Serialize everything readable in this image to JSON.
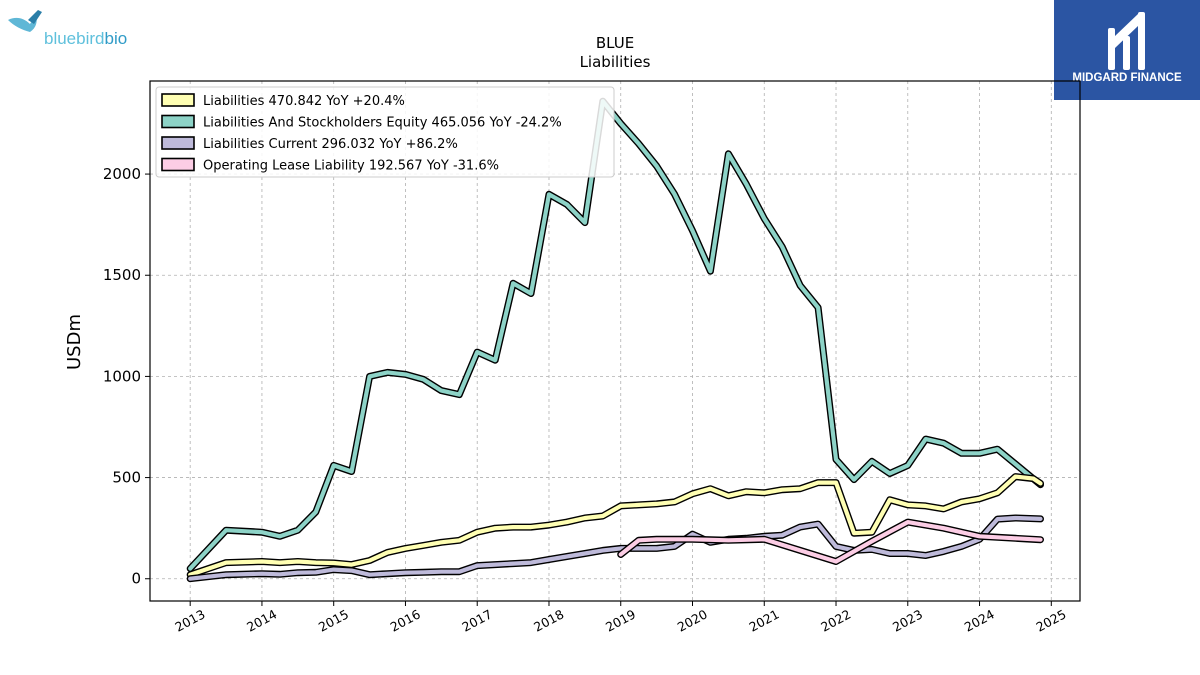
{
  "brand": {
    "company_logo_text": {
      "prefix": "bluebird",
      "suffix": "bio"
    },
    "publisher_logo_text": "MIDGARD FINANCE"
  },
  "chart_data": {
    "type": "line",
    "title": "BLUE",
    "subtitle": "Liabilities",
    "xlabel": "",
    "ylabel": "USDm",
    "xlim": [
      2012.44,
      2025.4
    ],
    "ylim": [
      -110,
      2460
    ],
    "x_ticks": [
      "2013",
      "2014",
      "2015",
      "2016",
      "2017",
      "2018",
      "2019",
      "2020",
      "2021",
      "2022",
      "2023",
      "2024",
      "2025"
    ],
    "y_ticks": [
      0,
      500,
      1000,
      1500,
      2000
    ],
    "grid": true,
    "legend_position": "top-left",
    "series": [
      {
        "name": "Liabilities  470.842 YoY +20.4%",
        "color": "#ffffb3",
        "points": [
          [
            2013.0,
            20
          ],
          [
            2013.5,
            80
          ],
          [
            2014.0,
            85
          ],
          [
            2014.25,
            80
          ],
          [
            2014.5,
            85
          ],
          [
            2014.75,
            80
          ],
          [
            2015.0,
            78
          ],
          [
            2015.25,
            70
          ],
          [
            2015.5,
            90
          ],
          [
            2015.75,
            130
          ],
          [
            2016.0,
            150
          ],
          [
            2016.25,
            165
          ],
          [
            2016.5,
            180
          ],
          [
            2016.75,
            190
          ],
          [
            2017.0,
            230
          ],
          [
            2017.25,
            250
          ],
          [
            2017.5,
            255
          ],
          [
            2017.75,
            255
          ],
          [
            2018.0,
            265
          ],
          [
            2018.25,
            280
          ],
          [
            2018.5,
            300
          ],
          [
            2018.75,
            310
          ],
          [
            2019.0,
            360
          ],
          [
            2019.25,
            365
          ],
          [
            2019.5,
            370
          ],
          [
            2019.75,
            380
          ],
          [
            2020.0,
            420
          ],
          [
            2020.25,
            445
          ],
          [
            2020.5,
            410
          ],
          [
            2020.75,
            430
          ],
          [
            2021.0,
            425
          ],
          [
            2021.25,
            440
          ],
          [
            2021.5,
            445
          ],
          [
            2021.75,
            475
          ],
          [
            2022.0,
            475
          ],
          [
            2022.25,
            225
          ],
          [
            2022.5,
            230
          ],
          [
            2022.75,
            390
          ],
          [
            2023.0,
            365
          ],
          [
            2023.25,
            360
          ],
          [
            2023.5,
            345
          ],
          [
            2023.75,
            380
          ],
          [
            2024.0,
            395
          ],
          [
            2024.25,
            425
          ],
          [
            2024.5,
            505
          ],
          [
            2024.75,
            495
          ],
          [
            2024.85,
            471
          ]
        ]
      },
      {
        "name": "Liabilities And Stockholders Equity  465.056 YoY -24.2%",
        "color": "#8dd3c7",
        "points": [
          [
            2013.0,
            50
          ],
          [
            2013.5,
            240
          ],
          [
            2014.0,
            230
          ],
          [
            2014.25,
            210
          ],
          [
            2014.5,
            240
          ],
          [
            2014.75,
            330
          ],
          [
            2015.0,
            560
          ],
          [
            2015.25,
            530
          ],
          [
            2015.5,
            1000
          ],
          [
            2015.75,
            1020
          ],
          [
            2016.0,
            1010
          ],
          [
            2016.25,
            985
          ],
          [
            2016.5,
            930
          ],
          [
            2016.75,
            910
          ],
          [
            2017.0,
            1120
          ],
          [
            2017.25,
            1080
          ],
          [
            2017.5,
            1460
          ],
          [
            2017.75,
            1410
          ],
          [
            2018.0,
            1900
          ],
          [
            2018.25,
            1850
          ],
          [
            2018.5,
            1760
          ],
          [
            2018.75,
            2360
          ],
          [
            2019.0,
            2250
          ],
          [
            2019.25,
            2150
          ],
          [
            2019.5,
            2040
          ],
          [
            2019.75,
            1900
          ],
          [
            2020.0,
            1720
          ],
          [
            2020.25,
            1520
          ],
          [
            2020.5,
            2100
          ],
          [
            2020.75,
            1950
          ],
          [
            2021.0,
            1780
          ],
          [
            2021.25,
            1640
          ],
          [
            2021.5,
            1450
          ],
          [
            2021.75,
            1340
          ],
          [
            2022.0,
            590
          ],
          [
            2022.25,
            490
          ],
          [
            2022.5,
            580
          ],
          [
            2022.75,
            520
          ],
          [
            2023.0,
            560
          ],
          [
            2023.25,
            690
          ],
          [
            2023.5,
            670
          ],
          [
            2023.75,
            620
          ],
          [
            2024.0,
            620
          ],
          [
            2024.25,
            640
          ],
          [
            2024.85,
            465
          ]
        ]
      },
      {
        "name": "Liabilities Current  296.032 YoY +86.2%",
        "color": "#bebada",
        "points": [
          [
            2013.0,
            0
          ],
          [
            2013.5,
            20
          ],
          [
            2014.0,
            25
          ],
          [
            2014.25,
            22
          ],
          [
            2014.5,
            30
          ],
          [
            2014.75,
            32
          ],
          [
            2015.0,
            45
          ],
          [
            2015.25,
            40
          ],
          [
            2015.5,
            20
          ],
          [
            2015.75,
            25
          ],
          [
            2016.0,
            30
          ],
          [
            2016.25,
            32
          ],
          [
            2016.5,
            35
          ],
          [
            2016.75,
            35
          ],
          [
            2017.0,
            65
          ],
          [
            2017.25,
            70
          ],
          [
            2017.5,
            75
          ],
          [
            2017.75,
            80
          ],
          [
            2018.0,
            95
          ],
          [
            2018.25,
            110
          ],
          [
            2018.5,
            125
          ],
          [
            2018.75,
            140
          ],
          [
            2019.0,
            150
          ],
          [
            2019.25,
            150
          ],
          [
            2019.5,
            150
          ],
          [
            2019.75,
            160
          ],
          [
            2020.0,
            220
          ],
          [
            2020.25,
            180
          ],
          [
            2020.5,
            195
          ],
          [
            2020.75,
            200
          ],
          [
            2021.0,
            210
          ],
          [
            2021.25,
            215
          ],
          [
            2021.5,
            255
          ],
          [
            2021.75,
            270
          ],
          [
            2022.0,
            160
          ],
          [
            2022.25,
            140
          ],
          [
            2022.5,
            145
          ],
          [
            2022.75,
            125
          ],
          [
            2023.0,
            125
          ],
          [
            2023.25,
            115
          ],
          [
            2023.5,
            135
          ],
          [
            2023.75,
            160
          ],
          [
            2024.0,
            195
          ],
          [
            2024.25,
            295
          ],
          [
            2024.5,
            300
          ],
          [
            2024.85,
            296
          ]
        ]
      },
      {
        "name": "Operating Lease Liability  192.567 YoY -31.6%",
        "color": "#fccde5",
        "points": [
          [
            2019.0,
            120
          ],
          [
            2019.25,
            190
          ],
          [
            2019.5,
            195
          ],
          [
            2019.75,
            195
          ],
          [
            2020.0,
            195
          ],
          [
            2020.5,
            190
          ],
          [
            2021.0,
            195
          ],
          [
            2021.5,
            140
          ],
          [
            2022.0,
            85
          ],
          [
            2022.5,
            185
          ],
          [
            2023.0,
            280
          ],
          [
            2023.5,
            250
          ],
          [
            2024.0,
            210
          ],
          [
            2024.5,
            200
          ],
          [
            2024.85,
            193
          ]
        ]
      }
    ]
  }
}
